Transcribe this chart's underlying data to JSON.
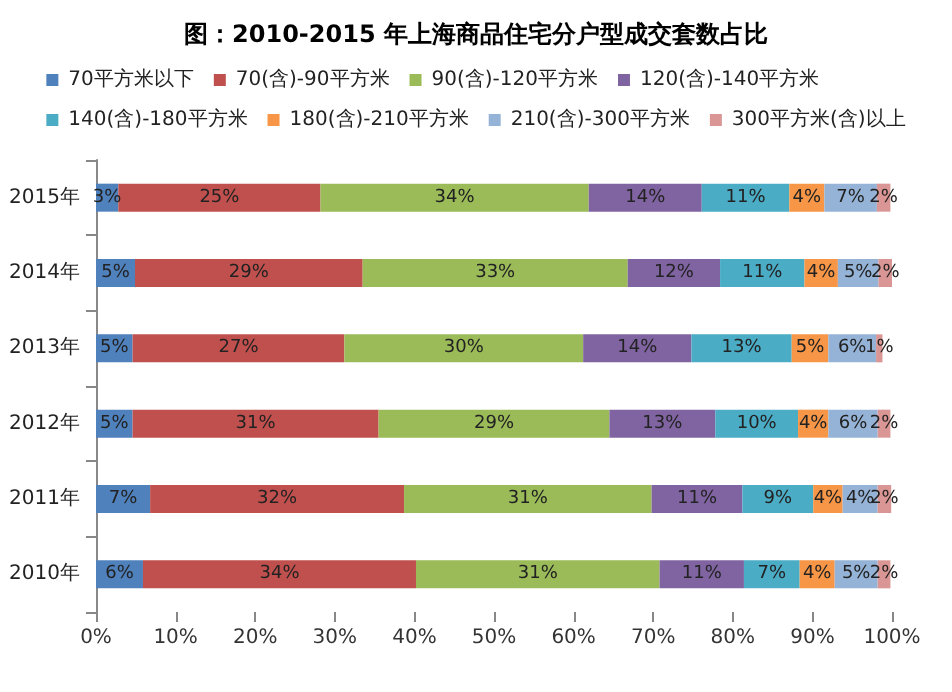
{
  "chart_data": {
    "type": "bar",
    "orientation": "horizontal",
    "stacked": true,
    "title": "图：2010-2015 年上海商品住宅分户型成交套数占比",
    "categories": [
      "2015年",
      "2014年",
      "2013年",
      "2012年",
      "2011年",
      "2010年"
    ],
    "series": [
      {
        "name": "70平方米以下",
        "color": "#4f81bd",
        "values": [
          2.8,
          4.9,
          4.6,
          4.6,
          6.8,
          5.9
        ],
        "value_labels": [
          "3%",
          "5%",
          "5%",
          "5%",
          "7%",
          "6%"
        ]
      },
      {
        "name": "70(含)-90平方米",
        "color": "#c0504d",
        "values": [
          25.4,
          28.6,
          26.6,
          30.9,
          31.9,
          34.3
        ],
        "value_labels": [
          "25%",
          "29%",
          "27%",
          "31%",
          "32%",
          "34%"
        ]
      },
      {
        "name": "90(含)-120平方米",
        "color": "#9bbb59",
        "values": [
          33.7,
          33.3,
          30.0,
          29.0,
          31.1,
          30.6
        ],
        "value_labels": [
          "34%",
          "33%",
          "30%",
          "29%",
          "31%",
          "31%"
        ]
      },
      {
        "name": "120(含)-140平方米",
        "color": "#8064a2",
        "values": [
          14.2,
          11.6,
          13.6,
          13.3,
          11.4,
          10.6
        ],
        "value_labels": [
          "14%",
          "12%",
          "14%",
          "13%",
          "11%",
          "11%"
        ]
      },
      {
        "name": "140(含)-180平方米",
        "color": "#4bacc6",
        "values": [
          11.0,
          10.6,
          12.6,
          10.4,
          8.9,
          7.0
        ],
        "value_labels": [
          "11%",
          "11%",
          "13%",
          "10%",
          "9%",
          "7%"
        ]
      },
      {
        "name": "180(含)-210平方米",
        "color": "#f79646",
        "values": [
          4.4,
          4.2,
          4.6,
          3.8,
          3.7,
          4.4
        ],
        "value_labels": [
          "4%",
          "4%",
          "5%",
          "4%",
          "4%",
          "4%"
        ]
      },
      {
        "name": "210(含)-300平方米",
        "color": "#95b3d7",
        "values": [
          6.6,
          5.1,
          6.0,
          6.2,
          4.4,
          5.4
        ],
        "value_labels": [
          "7%",
          "5%",
          "6%",
          "6%",
          "4%",
          "5%"
        ]
      },
      {
        "name": "300平方米(含)以上",
        "color": "#d99694",
        "values": [
          1.7,
          1.7,
          0.8,
          1.6,
          1.7,
          1.6
        ],
        "value_labels": [
          "2%",
          "2%",
          "1%",
          "2%",
          "2%",
          "2%"
        ]
      }
    ],
    "xlim": [
      0,
      100
    ],
    "xticks": [
      {
        "value": 0,
        "label": "0%"
      },
      {
        "value": 10,
        "label": "10%"
      },
      {
        "value": 20,
        "label": "20%"
      },
      {
        "value": 30,
        "label": "30%"
      },
      {
        "value": 40,
        "label": "40%"
      },
      {
        "value": 50,
        "label": "50%"
      },
      {
        "value": 60,
        "label": "60%"
      },
      {
        "value": 70,
        "label": "70%"
      },
      {
        "value": 80,
        "label": "80%"
      },
      {
        "value": 90,
        "label": "90%"
      },
      {
        "value": 100,
        "label": "100%"
      }
    ],
    "legend": "top",
    "grid": false
  }
}
